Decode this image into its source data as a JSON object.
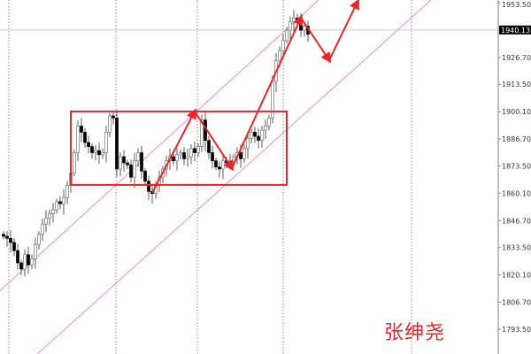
{
  "chart_data": {
    "type": "candlestick",
    "title": "",
    "price_axis": {
      "position": "right",
      "tick_labels": [
        "1953.50",
        "1940.13",
        "1926.70",
        "1913.50",
        "1900.10",
        "1886.70",
        "1873.50",
        "1860.10",
        "1846.70",
        "1833.50",
        "1820.10",
        "1806.70",
        "1793.50"
      ],
      "ticks": [
        1953.5,
        1926.7,
        1913.5,
        1900.1,
        1886.7,
        1873.5,
        1860.1,
        1846.7,
        1833.5,
        1820.1,
        1806.7,
        1793.5
      ],
      "ylim": [
        1790,
        1955
      ]
    },
    "current_price": 1940.13,
    "current_price_label": "1940.13",
    "open_first": 1840,
    "close": [
      1839,
      1838,
      1836,
      1832,
      1826,
      1823,
      1830,
      1825,
      1828,
      1835,
      1840,
      1845,
      1848,
      1850,
      1852,
      1856,
      1855,
      1858,
      1864,
      1870,
      1880,
      1893,
      1890,
      1885,
      1883,
      1880,
      1881,
      1879,
      1880,
      1890,
      1898,
      1897,
      1872,
      1878,
      1875,
      1874,
      1868,
      1876,
      1880,
      1871,
      1866,
      1861,
      1860,
      1864,
      1868,
      1872,
      1876,
      1878,
      1876,
      1879,
      1880,
      1877,
      1878,
      1882,
      1880,
      1883,
      1896,
      1886,
      1880,
      1876,
      1873,
      1872,
      1876,
      1875,
      1876,
      1878,
      1880,
      1877,
      1882,
      1887,
      1890,
      1888,
      1886,
      1891,
      1893,
      1897,
      1915,
      1925,
      1930,
      1935,
      1940,
      1944,
      1946,
      1945,
      1940,
      1942,
      1938
    ],
    "annotations": {
      "range_box": {
        "price_top": 1900.2,
        "price_bottom": 1864.2,
        "from_bar": 19,
        "to_bar": 80,
        "color": "#e8262a"
      },
      "zigzag_path": {
        "color": "#e8262a",
        "points": [
          [
            42,
            1860.3
          ],
          [
            54,
            1900.2
          ],
          [
            64.5,
            1872.4
          ],
          [
            84,
            1946.1
          ],
          [
            92,
            1925.3
          ],
          [
            100,
            1954.0
          ]
        ]
      },
      "channel": {
        "color": "#e58ae8",
        "upper": [
          [
            54.5,
            1900.2
          ],
          [
            89,
            1954.8
          ]
        ],
        "lower": [
          [
            31.75,
            1816.0
          ],
          [
            120.75,
            1954.8
          ]
        ]
      }
    },
    "grid": "vertical dotted separators"
  },
  "watermark": "张绅尧"
}
